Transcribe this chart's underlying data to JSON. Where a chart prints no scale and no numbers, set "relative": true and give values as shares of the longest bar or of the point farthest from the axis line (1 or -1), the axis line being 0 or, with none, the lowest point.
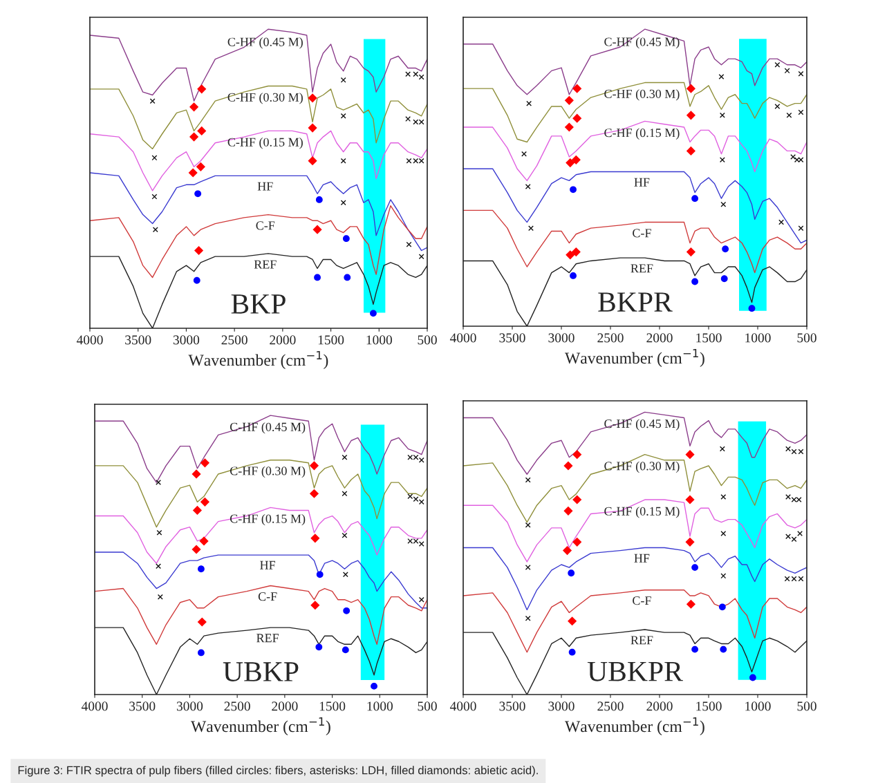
{
  "chart_data": [
    {
      "type": "line",
      "relative": true,
      "xlabel": "Wavenumber (cm$^{−1}$)",
      "xlim": [
        4000,
        500
      ],
      "xticks": [
        4000,
        3500,
        3000,
        2500,
        2000,
        1500,
        1000,
        500
      ],
      "x": [
        4000,
        3700,
        3550,
        3450,
        3350,
        3250,
        3100,
        3000,
        2920,
        2850,
        2700,
        2400,
        2150,
        1900,
        1750,
        1690,
        1640,
        1580,
        1500,
        1440,
        1370,
        1300,
        1230,
        1160,
        1110,
        1060,
        1030,
        950,
        880,
        800,
        700,
        620,
        560,
        500
      ],
      "bands": [
        {
          "axis": "x",
          "from": 1160,
          "to": 935,
          "color": "#00ffff"
        }
      ],
      "series": [
        {
          "name": "C-HF (0.45 M)",
          "color": "#8b3d8b",
          "values": [
            0.98,
            0.97,
            0.86,
            0.79,
            0.78,
            0.82,
            0.87,
            0.87,
            0.76,
            0.81,
            0.9,
            0.94,
            1.0,
            0.99,
            0.98,
            0.79,
            0.87,
            0.92,
            0.95,
            0.89,
            0.86,
            0.91,
            0.9,
            0.87,
            0.86,
            0.84,
            0.79,
            0.84,
            0.9,
            0.91,
            0.87,
            0.87,
            0.86,
            0.9
          ]
        },
        {
          "name": "C-HF (0.30 M)",
          "color": "#8f8f3a",
          "values": [
            0.8,
            0.8,
            0.71,
            0.63,
            0.6,
            0.65,
            0.72,
            0.73,
            0.66,
            0.69,
            0.76,
            0.79,
            0.81,
            0.81,
            0.8,
            0.69,
            0.77,
            0.78,
            0.8,
            0.74,
            0.73,
            0.74,
            0.75,
            0.72,
            0.73,
            0.7,
            0.62,
            0.7,
            0.76,
            0.76,
            0.73,
            0.72,
            0.71,
            0.75
          ]
        },
        {
          "name": "C-HF (0.15 M)",
          "color": "#e060e0",
          "values": [
            0.65,
            0.64,
            0.59,
            0.52,
            0.46,
            0.51,
            0.57,
            0.59,
            0.54,
            0.56,
            0.62,
            0.64,
            0.66,
            0.66,
            0.65,
            0.57,
            0.62,
            0.64,
            0.66,
            0.62,
            0.59,
            0.62,
            0.62,
            0.59,
            0.59,
            0.56,
            0.5,
            0.58,
            0.62,
            0.62,
            0.59,
            0.58,
            0.57,
            0.6
          ]
        },
        {
          "name": "HF",
          "color": "#3a3ad0",
          "values": [
            0.52,
            0.51,
            0.43,
            0.38,
            0.35,
            0.39,
            0.47,
            0.48,
            0.48,
            0.49,
            0.51,
            0.51,
            0.51,
            0.51,
            0.51,
            0.48,
            0.45,
            0.48,
            0.49,
            0.47,
            0.45,
            0.47,
            0.48,
            0.42,
            0.43,
            0.39,
            0.31,
            0.38,
            0.43,
            0.39,
            0.33,
            0.29,
            0.26,
            0.27
          ]
        },
        {
          "name": "C-F",
          "color": "#d03a3a",
          "values": [
            0.36,
            0.37,
            0.29,
            0.21,
            0.17,
            0.23,
            0.31,
            0.34,
            0.31,
            0.33,
            0.35,
            0.37,
            0.38,
            0.37,
            0.37,
            0.36,
            0.36,
            0.35,
            0.36,
            0.33,
            0.32,
            0.34,
            0.34,
            0.3,
            0.28,
            0.21,
            0.18,
            0.33,
            0.41,
            0.37,
            0.33,
            0.3,
            0.3,
            0.34
          ]
        },
        {
          "name": "REF",
          "color": "#222222",
          "values": [
            0.24,
            0.24,
            0.14,
            0.05,
            0,
            0.08,
            0.19,
            0.21,
            0.19,
            0.22,
            0.24,
            0.24,
            0.25,
            0.24,
            0.24,
            0.23,
            0.2,
            0.23,
            0.23,
            0.21,
            0.2,
            0.21,
            0.22,
            0.18,
            0.14,
            0.08,
            0.12,
            0.21,
            0.22,
            0.21,
            0.18,
            0.17,
            0.18,
            0.21
          ]
        },
        {
          "type": "scatter",
          "marker": "diamond",
          "color": "#ff0000",
          "x": [
            2920,
            2840,
            1690,
            2920,
            2840,
            1690,
            2930,
            2850,
            1690,
            2870,
            1640
          ],
          "values": [
            0.74,
            0.8,
            0.77,
            0.64,
            0.66,
            0.67,
            0.52,
            0.54,
            0.56,
            0.26,
            0.33
          ]
        },
        {
          "type": "scatter",
          "marker": "circle",
          "color": "#0000ff",
          "x": [
            2880,
            1620,
            1340,
            2890,
            1640,
            1330,
            1060
          ],
          "values": [
            0.45,
            0.43,
            0.3,
            0.16,
            0.17,
            0.17,
            0.05
          ]
        },
        {
          "type": "scatter",
          "marker": "cross",
          "color": "#111111",
          "x": [
            3350,
            1370,
            700,
            620,
            560,
            3330,
            1370,
            700,
            620,
            560,
            3330,
            1370,
            690,
            620,
            560,
            3320,
            1370,
            690,
            560
          ],
          "values": [
            0.76,
            0.83,
            0.85,
            0.85,
            0.84,
            0.57,
            0.71,
            0.7,
            0.69,
            0.69,
            0.44,
            0.56,
            0.56,
            0.56,
            0.56,
            0.33,
            0.42,
            0.28,
            0.24
          ]
        }
      ],
      "annotations": [
        "BKP"
      ]
    },
    {
      "type": "line",
      "relative": true,
      "xlabel": "Wavenumber (cm$^{−1}$)",
      "xlim": [
        4000,
        500
      ],
      "xticks": [
        4000,
        3500,
        3000,
        2500,
        2000,
        1500,
        1000,
        500
      ],
      "x": [
        4000,
        3700,
        3550,
        3450,
        3350,
        3250,
        3100,
        3000,
        2920,
        2850,
        2700,
        2400,
        2150,
        1950,
        1750,
        1690,
        1640,
        1580,
        1500,
        1440,
        1370,
        1300,
        1230,
        1160,
        1110,
        1060,
        1030,
        950,
        880,
        800,
        700,
        620,
        560,
        500
      ],
      "bands": [
        {
          "axis": "x",
          "from": 1190,
          "to": 910,
          "color": "#00ffff"
        }
      ],
      "series": [
        {
          "name": "C-HF (0.45 M)",
          "color": "#8b3d8b",
          "values": [
            0.95,
            0.95,
            0.86,
            0.81,
            0.78,
            0.81,
            0.86,
            0.87,
            0.78,
            0.82,
            0.91,
            0.94,
            1.0,
            0.98,
            0.96,
            0.81,
            0.9,
            0.93,
            0.94,
            0.9,
            0.88,
            0.9,
            0.9,
            0.89,
            0.86,
            0.85,
            0.81,
            0.87,
            0.9,
            0.9,
            0.88,
            0.88,
            0.87,
            0.89
          ]
        },
        {
          "name": "C-HF (0.30 M)",
          "color": "#8f8f3a",
          "values": [
            0.8,
            0.8,
            0.71,
            0.63,
            0.62,
            0.67,
            0.74,
            0.74,
            0.7,
            0.73,
            0.77,
            0.8,
            0.82,
            0.82,
            0.82,
            0.74,
            0.78,
            0.79,
            0.81,
            0.77,
            0.73,
            0.77,
            0.78,
            0.75,
            0.75,
            0.72,
            0.7,
            0.75,
            0.77,
            0.76,
            0.74,
            0.75,
            0.75,
            0.78
          ]
        },
        {
          "name": "C-HF (0.15 M)",
          "color": "#e060e0",
          "values": [
            0.67,
            0.67,
            0.6,
            0.53,
            0.49,
            0.54,
            0.64,
            0.64,
            0.57,
            0.59,
            0.64,
            0.66,
            0.69,
            0.68,
            0.67,
            0.62,
            0.64,
            0.66,
            0.66,
            0.64,
            0.58,
            0.64,
            0.64,
            0.61,
            0.59,
            0.55,
            0.52,
            0.59,
            0.63,
            0.62,
            0.59,
            0.59,
            0.58,
            0.62
          ]
        },
        {
          "name": "HF",
          "color": "#3a3ad0",
          "values": [
            0.53,
            0.53,
            0.45,
            0.39,
            0.35,
            0.4,
            0.48,
            0.5,
            0.49,
            0.51,
            0.52,
            0.52,
            0.52,
            0.52,
            0.52,
            0.5,
            0.45,
            0.48,
            0.5,
            0.48,
            0.43,
            0.47,
            0.49,
            0.47,
            0.45,
            0.41,
            0.36,
            0.42,
            0.43,
            0.4,
            0.35,
            0.31,
            0.28,
            0.29
          ]
        },
        {
          "name": "C-F",
          "color": "#d03a3a",
          "values": [
            0.39,
            0.39,
            0.33,
            0.26,
            0.2,
            0.25,
            0.32,
            0.32,
            0.28,
            0.31,
            0.33,
            0.34,
            0.35,
            0.35,
            0.35,
            0.28,
            0.32,
            0.33,
            0.33,
            0.3,
            0.28,
            0.29,
            0.3,
            0.28,
            0.25,
            0.21,
            0.18,
            0.26,
            0.29,
            0.3,
            0.28,
            0.26,
            0.26,
            0.28
          ]
        },
        {
          "name": "REF",
          "color": "#222222",
          "values": [
            0.22,
            0.22,
            0.14,
            0.05,
            0,
            0.07,
            0.18,
            0.2,
            0.18,
            0.21,
            0.22,
            0.23,
            0.23,
            0.22,
            0.22,
            0.21,
            0.17,
            0.2,
            0.21,
            0.18,
            0.18,
            0.2,
            0.2,
            0.17,
            0.13,
            0.08,
            0.13,
            0.19,
            0.2,
            0.18,
            0.15,
            0.15,
            0.16,
            0.19
          ]
        },
        {
          "type": "scatter",
          "marker": "diamond",
          "color": "#ff0000",
          "x": [
            2920,
            2840,
            1680,
            2920,
            2840,
            1680,
            2910,
            2850,
            1680,
            2910,
            2850,
            1680
          ],
          "values": [
            0.76,
            0.8,
            0.8,
            0.67,
            0.7,
            0.71,
            0.55,
            0.56,
            0.59,
            0.24,
            0.25,
            0.25
          ]
        },
        {
          "type": "scatter",
          "marker": "circle",
          "color": "#0000ff",
          "x": [
            2880,
            1640,
            1330,
            2880,
            1640,
            1340,
            1060
          ],
          "values": [
            0.46,
            0.43,
            0.26,
            0.17,
            0.15,
            0.16,
            0.06
          ]
        },
        {
          "type": "scatter",
          "marker": "cross",
          "color": "#111111",
          "x": [
            3330,
            1370,
            800,
            700,
            560,
            3380,
            1360,
            800,
            680,
            560,
            3340,
            1360,
            640,
            600,
            560,
            3310,
            1350,
            760,
            560
          ],
          "values": [
            0.75,
            0.84,
            0.88,
            0.86,
            0.85,
            0.58,
            0.71,
            0.74,
            0.71,
            0.72,
            0.47,
            0.56,
            0.57,
            0.56,
            0.56,
            0.33,
            0.41,
            0.35,
            0.33
          ]
        }
      ],
      "annotations": [
        "BKPR"
      ]
    },
    {
      "type": "line",
      "relative": true,
      "xlabel": "Wavenumber (cm$^{−1}$)",
      "xlim": [
        4000,
        500
      ],
      "xticks": [
        4000,
        3500,
        3000,
        2500,
        2000,
        1500,
        1000,
        500
      ],
      "x": [
        4000,
        3700,
        3550,
        3450,
        3350,
        3250,
        3100,
        3000,
        2920,
        2850,
        2700,
        2400,
        2150,
        1950,
        1750,
        1690,
        1640,
        1580,
        1500,
        1440,
        1370,
        1300,
        1230,
        1160,
        1110,
        1060,
        1030,
        950,
        880,
        800,
        700,
        620,
        560,
        500
      ],
      "bands": [
        {
          "axis": "x",
          "from": 1200,
          "to": 950,
          "color": "#00ffff"
        }
      ],
      "series": [
        {
          "name": "C-HF (0.45 M)",
          "color": "#8b3d8b",
          "values": [
            0.98,
            0.98,
            0.9,
            0.81,
            0.76,
            0.82,
            0.89,
            0.89,
            0.81,
            0.85,
            0.93,
            0.96,
            1.0,
            0.99,
            0.98,
            0.84,
            0.92,
            0.95,
            0.97,
            0.92,
            0.87,
            0.91,
            0.92,
            0.88,
            0.86,
            0.82,
            0.79,
            0.86,
            0.91,
            0.92,
            0.88,
            0.87,
            0.86,
            0.91
          ]
        },
        {
          "name": "C-HF (0.30 M)",
          "color": "#8f8f3a",
          "values": [
            0.82,
            0.82,
            0.76,
            0.68,
            0.6,
            0.66,
            0.74,
            0.75,
            0.69,
            0.71,
            0.79,
            0.82,
            0.84,
            0.84,
            0.83,
            0.74,
            0.79,
            0.81,
            0.82,
            0.78,
            0.74,
            0.77,
            0.79,
            0.73,
            0.71,
            0.67,
            0.63,
            0.72,
            0.76,
            0.76,
            0.72,
            0.72,
            0.71,
            0.74
          ]
        },
        {
          "name": "C-HF (0.15 M)",
          "color": "#e060e0",
          "values": [
            0.64,
            0.64,
            0.58,
            0.51,
            0.47,
            0.53,
            0.59,
            0.6,
            0.55,
            0.56,
            0.62,
            0.64,
            0.67,
            0.66,
            0.66,
            0.58,
            0.61,
            0.63,
            0.64,
            0.62,
            0.58,
            0.61,
            0.62,
            0.59,
            0.57,
            0.53,
            0.5,
            0.56,
            0.6,
            0.6,
            0.57,
            0.56,
            0.56,
            0.59
          ]
        },
        {
          "name": "HF",
          "color": "#3a3ad0",
          "values": [
            0.51,
            0.51,
            0.47,
            0.42,
            0.38,
            0.4,
            0.47,
            0.48,
            0.48,
            0.49,
            0.5,
            0.5,
            0.5,
            0.5,
            0.5,
            0.48,
            0.43,
            0.47,
            0.48,
            0.47,
            0.45,
            0.47,
            0.48,
            0.45,
            0.42,
            0.4,
            0.37,
            0.41,
            0.44,
            0.41,
            0.36,
            0.33,
            0.31,
            0.31
          ]
        },
        {
          "name": "C-F",
          "color": "#d03a3a",
          "values": [
            0.37,
            0.38,
            0.31,
            0.24,
            0.18,
            0.25,
            0.33,
            0.34,
            0.31,
            0.31,
            0.35,
            0.37,
            0.39,
            0.38,
            0.37,
            0.34,
            0.37,
            0.38,
            0.37,
            0.34,
            0.34,
            0.33,
            0.34,
            0.31,
            0.27,
            0.21,
            0.18,
            0.31,
            0.35,
            0.35,
            0.32,
            0.31,
            0.3,
            0.34
          ]
        },
        {
          "name": "REF",
          "color": "#222222",
          "values": [
            0.24,
            0.24,
            0.15,
            0.07,
            0,
            0.07,
            0.17,
            0.2,
            0.18,
            0.21,
            0.22,
            0.23,
            0.24,
            0.24,
            0.23,
            0.21,
            0.18,
            0.21,
            0.21,
            0.19,
            0.18,
            0.18,
            0.21,
            0.16,
            0.12,
            0.07,
            0.11,
            0.19,
            0.2,
            0.19,
            0.17,
            0.15,
            0.16,
            0.19
          ]
        },
        {
          "type": "scatter",
          "marker": "diamond",
          "color": "#ff0000",
          "x": [
            2930,
            2840,
            1690,
            2920,
            2840,
            1690,
            2930,
            2850,
            1680,
            2870,
            1680
          ],
          "values": [
            0.79,
            0.83,
            0.82,
            0.66,
            0.69,
            0.72,
            0.52,
            0.55,
            0.56,
            0.26,
            0.32
          ]
        },
        {
          "type": "scatter",
          "marker": "circle",
          "color": "#0000ff",
          "x": [
            2880,
            1630,
            1350,
            2880,
            1640,
            1360,
            1060
          ],
          "values": [
            0.45,
            0.43,
            0.3,
            0.15,
            0.17,
            0.16,
            0.03
          ]
        },
        {
          "type": "scatter",
          "marker": "cross",
          "color": "#111111",
          "x": [
            3330,
            1370,
            680,
            620,
            560,
            3320,
            1370,
            680,
            620,
            560,
            3330,
            1370,
            680,
            620,
            560,
            3310,
            1360,
            560
          ],
          "values": [
            0.76,
            0.85,
            0.85,
            0.85,
            0.84,
            0.58,
            0.72,
            0.71,
            0.7,
            0.69,
            0.46,
            0.57,
            0.55,
            0.55,
            0.54,
            0.35,
            0.43,
            0.34
          ]
        }
      ],
      "annotations": [
        "UBKP"
      ]
    },
    {
      "type": "line",
      "relative": true,
      "xlabel": "Wavenumber (cm$^{−1}$)",
      "xlim": [
        4000,
        500
      ],
      "xticks": [
        4000,
        3500,
        3000,
        2500,
        2000,
        1500,
        1000,
        500
      ],
      "x": [
        4000,
        3700,
        3550,
        3450,
        3350,
        3250,
        3100,
        3000,
        2920,
        2850,
        2700,
        2400,
        2150,
        1950,
        1750,
        1690,
        1640,
        1580,
        1500,
        1440,
        1370,
        1300,
        1230,
        1160,
        1110,
        1060,
        1030,
        950,
        880,
        800,
        700,
        620,
        560,
        500
      ],
      "bands": [
        {
          "axis": "x",
          "from": 1200,
          "to": 915,
          "color": "#00ffff"
        }
      ],
      "series": [
        {
          "name": "C-HF (0.45 M)",
          "color": "#8b3d8b",
          "values": [
            0.98,
            0.98,
            0.9,
            0.83,
            0.78,
            0.83,
            0.89,
            0.9,
            0.84,
            0.86,
            0.93,
            0.96,
            1.0,
            0.99,
            0.98,
            0.88,
            0.93,
            0.95,
            0.97,
            0.93,
            0.91,
            0.94,
            0.94,
            0.91,
            0.89,
            0.84,
            0.84,
            0.9,
            0.94,
            0.93,
            0.9,
            0.89,
            0.9,
            0.92
          ]
        },
        {
          "name": "C-HF (0.30 M)",
          "color": "#8f8f3a",
          "values": [
            0.81,
            0.82,
            0.74,
            0.67,
            0.61,
            0.67,
            0.73,
            0.74,
            0.69,
            0.71,
            0.78,
            0.81,
            0.85,
            0.83,
            0.83,
            0.72,
            0.79,
            0.8,
            0.81,
            0.78,
            0.74,
            0.77,
            0.77,
            0.76,
            0.73,
            0.69,
            0.67,
            0.75,
            0.76,
            0.76,
            0.73,
            0.74,
            0.73,
            0.76
          ]
        },
        {
          "name": "C-HF (0.15 M)",
          "color": "#e060e0",
          "values": [
            0.67,
            0.67,
            0.61,
            0.53,
            0.47,
            0.53,
            0.59,
            0.59,
            0.52,
            0.56,
            0.64,
            0.65,
            0.69,
            0.69,
            0.68,
            0.56,
            0.64,
            0.66,
            0.66,
            0.62,
            0.61,
            0.62,
            0.62,
            0.6,
            0.57,
            0.54,
            0.52,
            0.6,
            0.63,
            0.64,
            0.6,
            0.59,
            0.6,
            0.62
          ]
        },
        {
          "name": "HF",
          "color": "#3a3ad0",
          "values": [
            0.52,
            0.52,
            0.45,
            0.38,
            0.3,
            0.37,
            0.44,
            0.46,
            0.45,
            0.47,
            0.5,
            0.51,
            0.52,
            0.52,
            0.51,
            0.5,
            0.47,
            0.49,
            0.5,
            0.48,
            0.45,
            0.48,
            0.49,
            0.46,
            0.46,
            0.42,
            0.4,
            0.46,
            0.48,
            0.46,
            0.44,
            0.43,
            0.44,
            0.45
          ]
        },
        {
          "name": "C-F",
          "color": "#d03a3a",
          "values": [
            0.35,
            0.36,
            0.29,
            0.22,
            0.15,
            0.22,
            0.31,
            0.33,
            0.29,
            0.31,
            0.35,
            0.36,
            0.37,
            0.37,
            0.37,
            0.35,
            0.35,
            0.36,
            0.35,
            0.32,
            0.31,
            0.32,
            0.34,
            0.3,
            0.28,
            0.23,
            0.2,
            0.31,
            0.34,
            0.34,
            0.31,
            0.3,
            0.29,
            0.31
          ]
        },
        {
          "name": "REF",
          "color": "#222222",
          "values": [
            0.22,
            0.22,
            0.13,
            0.06,
            0,
            0.07,
            0.18,
            0.2,
            0.17,
            0.2,
            0.21,
            0.22,
            0.23,
            0.22,
            0.22,
            0.21,
            0.18,
            0.2,
            0.2,
            0.19,
            0.18,
            0.18,
            0.2,
            0.17,
            0.13,
            0.08,
            0.11,
            0.19,
            0.2,
            0.19,
            0.17,
            0.15,
            0.17,
            0.19
          ]
        },
        {
          "type": "scatter",
          "marker": "diamond",
          "color": "#ff0000",
          "x": [
            2930,
            2840,
            1690,
            2930,
            2840,
            1690,
            2940,
            2840,
            1690,
            2890,
            1680
          ],
          "values": [
            0.81,
            0.85,
            0.85,
            0.65,
            0.69,
            0.69,
            0.51,
            0.54,
            0.54,
            0.26,
            0.32
          ]
        },
        {
          "type": "scatter",
          "marker": "circle",
          "color": "#0000ff",
          "x": [
            2900,
            1640,
            1360,
            2890,
            1640,
            1350,
            1050
          ],
          "values": [
            0.43,
            0.45,
            0.31,
            0.15,
            0.16,
            0.16,
            0.06
          ]
        },
        {
          "type": "scatter",
          "marker": "cross",
          "color": "#111111",
          "x": [
            3340,
            1360,
            690,
            630,
            560,
            3340,
            1350,
            690,
            630,
            580,
            3340,
            1350,
            690,
            630,
            570,
            3340,
            1350,
            700,
            630,
            560
          ],
          "values": [
            0.76,
            0.87,
            0.87,
            0.86,
            0.86,
            0.6,
            0.7,
            0.7,
            0.69,
            0.69,
            0.45,
            0.57,
            0.56,
            0.55,
            0.57,
            0.27,
            0.42,
            0.41,
            0.41,
            0.41
          ]
        }
      ],
      "annotations": [
        "UBKPR",
        "Figure 3: FTIR spectra of pulp fibers (filled circles: fibers, asterisks: LDH, filled diamonds: abietic acid)."
      ]
    }
  ]
}
